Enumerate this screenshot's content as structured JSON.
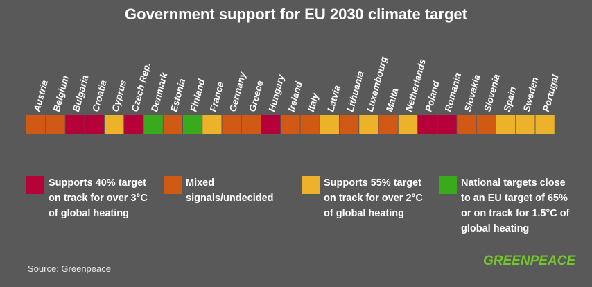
{
  "title": "Government support for EU 2030 climate target",
  "colors": {
    "background": "#595959",
    "supports_40": "#b5003a",
    "mixed": "#d05a15",
    "supports_55": "#ebb22a",
    "national_65": "#3aaa1d"
  },
  "chart_data": {
    "type": "table",
    "title": "Government support for EU 2030 climate target",
    "categories": [
      "Austria",
      "Belgium",
      "Bulgaria",
      "Croatia",
      "Cyprus",
      "Czech Rep.",
      "Denmark",
      "Estonia",
      "Finland",
      "France",
      "Germany",
      "Greece",
      "Hungary",
      "Ireland",
      "Italy",
      "Latvia",
      "Lithuania",
      "Luxembourg",
      "Malta",
      "Netherlands",
      "Poland",
      "Romania",
      "Slovakia",
      "Slovenia",
      "Spain",
      "Sweden",
      "Portugal"
    ],
    "values": [
      "mixed",
      "mixed",
      "supports_40",
      "supports_40",
      "supports_55",
      "supports_40",
      "national_65",
      "mixed",
      "national_65",
      "supports_55",
      "mixed",
      "mixed",
      "supports_40",
      "mixed",
      "mixed",
      "supports_55",
      "mixed",
      "supports_55",
      "mixed",
      "supports_55",
      "supports_40",
      "supports_40",
      "mixed",
      "mixed",
      "supports_55",
      "supports_55",
      "supports_55"
    ],
    "legend": [
      {
        "key": "supports_40",
        "lines": [
          "Supports 40% target",
          "on track for over 3°C",
          "of global heating"
        ]
      },
      {
        "key": "mixed",
        "lines": [
          "Mixed",
          "signals/undecided"
        ]
      },
      {
        "key": "supports_55",
        "lines": [
          "Supports 55% target",
          "on track for over 2°C",
          "of global heating"
        ]
      },
      {
        "key": "national_65",
        "lines": [
          "National targets close",
          "to an EU target of 65%",
          "or on track for 1.5°C of",
          "global heating"
        ]
      }
    ]
  },
  "source": "Source: Greenpeace",
  "logo": "GREENPEACE"
}
